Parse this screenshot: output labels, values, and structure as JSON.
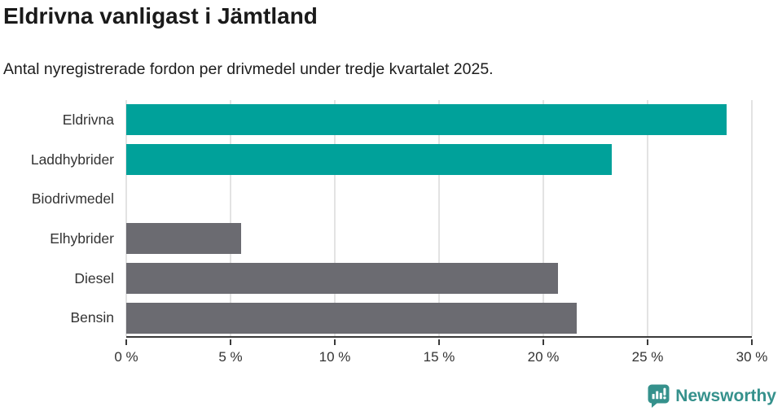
{
  "chart": {
    "title": "Eldrivna vanligast i Jämtland",
    "subtitle": "Antal nyregistrerade fordon per drivmedel under tredje kvartalet 2025."
  },
  "chart_data": {
    "type": "bar",
    "orientation": "horizontal",
    "title": "Eldrivna vanligast i Jämtland",
    "subtitle": "Antal nyregistrerade fordon per drivmedel under tredje kvartalet 2025.",
    "categories": [
      "Eldrivna",
      "Laddhybrider",
      "Biodrivmedel",
      "Elhybrider",
      "Diesel",
      "Bensin"
    ],
    "values": [
      28.8,
      23.3,
      0,
      5.5,
      20.7,
      21.6
    ],
    "unit": "%",
    "xlabel": "",
    "ylabel": "",
    "xlim": [
      0,
      30
    ],
    "x_ticks": [
      0,
      5,
      10,
      15,
      20,
      25,
      30
    ],
    "x_tick_labels": [
      "0 %",
      "5 %",
      "10 %",
      "15 %",
      "20 %",
      "25 %",
      "30 %"
    ],
    "bar_colors": [
      "#00a19a",
      "#00a19a",
      "#6b6b71",
      "#6b6b71",
      "#6b6b71",
      "#6b6b71"
    ],
    "grid": "vertical",
    "legend": "none"
  },
  "colors": {
    "teal": "#00a19a",
    "gray": "#6b6b71",
    "brand_teal": "#35918c",
    "gridline": "#e3e3e3",
    "axis": "#3a3a3a"
  },
  "footer": {
    "brand": "Newsworthy"
  }
}
